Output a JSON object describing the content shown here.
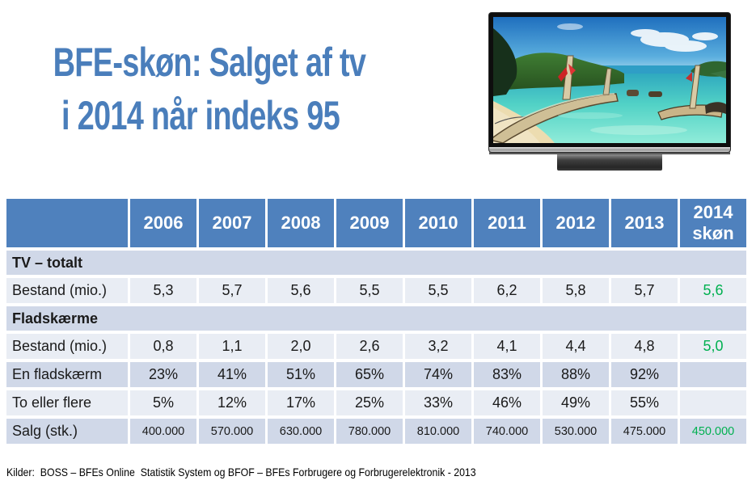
{
  "slide": {
    "title_line1": "BFE-skøn: Salget af tv",
    "title_line2": "i 2014 når indeks 95",
    "footer": "Kilder:  BOSS – BFEs Online  Statistik System og BFOF – BFEs Forbrugere og Forbrugerelektronik - 2013"
  },
  "images": {
    "tv_alt": "Flat-screen TV showing a tropical beach with longtail boats"
  },
  "table": {
    "header": [
      "",
      "2006",
      "2007",
      "2008",
      "2009",
      "2010",
      "2011",
      "2012",
      "2013",
      "2014\nskøn"
    ],
    "rows": [
      {
        "type": "section",
        "label": "TV – totalt"
      },
      {
        "type": "data",
        "label": "Bestand (mio.)",
        "values": [
          "5,3",
          "5,7",
          "5,6",
          "5,5",
          "5,5",
          "6,2",
          "5,8",
          "5,7",
          "5,6"
        ],
        "forecast_green": true,
        "small_numbers": false
      },
      {
        "type": "section",
        "label": "Fladskærme"
      },
      {
        "type": "data",
        "label": "Bestand (mio.)",
        "values": [
          "0,8",
          "1,1",
          "2,0",
          "2,6",
          "3,2",
          "4,1",
          "4,4",
          "4,8",
          "5,0"
        ],
        "forecast_green": true,
        "small_numbers": false
      },
      {
        "type": "data",
        "label": "En fladskærm",
        "values": [
          "23%",
          "41%",
          "51%",
          "65%",
          "74%",
          "83%",
          "88%",
          "92%",
          ""
        ],
        "forecast_green": false,
        "small_numbers": false
      },
      {
        "type": "data",
        "label": "To eller flere",
        "values": [
          "5%",
          "12%",
          "17%",
          "25%",
          "33%",
          "46%",
          "49%",
          "55%",
          ""
        ],
        "forecast_green": false,
        "small_numbers": false
      },
      {
        "type": "data",
        "label": "Salg (stk.)",
        "values": [
          "400.000",
          "570.000",
          "630.000",
          "780.000",
          "810.000",
          "740.000",
          "530.000",
          "475.000",
          "450.000"
        ],
        "forecast_green": true,
        "small_numbers": true
      }
    ]
  },
  "colors": {
    "accent_blue": "#4f81bd",
    "title_blue": "#4a7ebb",
    "band_dark": "#d0d8e8",
    "band_light": "#e9edf4",
    "green": "#00b050",
    "text": "#1a1a1a"
  }
}
